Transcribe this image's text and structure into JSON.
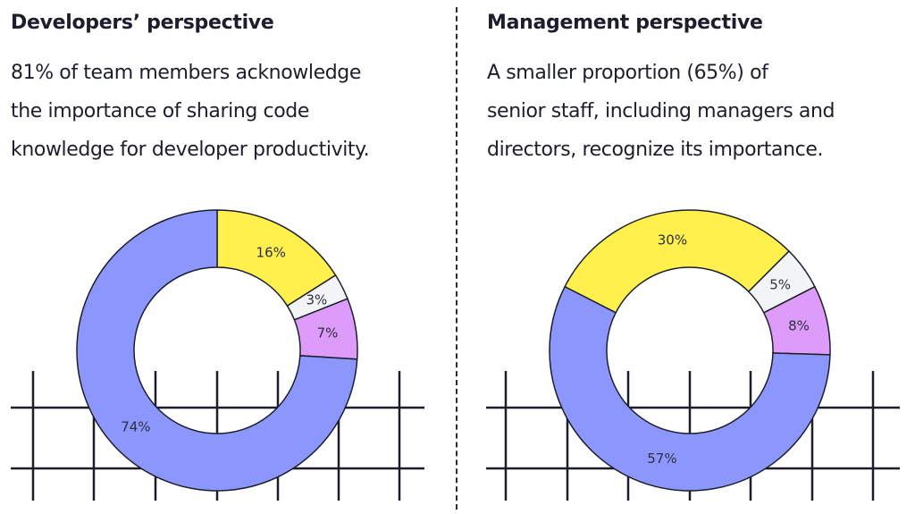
{
  "colors": {
    "blue": "#8C97FD",
    "yellow": "#FFF04E",
    "gray": "#F3F4F6",
    "pink": "#DE9CFA",
    "ink": "#1d1e2c"
  },
  "panels": [
    {
      "title": "Developers’ perspective",
      "lines": [
        "81% of team members acknowledge",
        "the importance of sharing code",
        "knowledge for developer productivity."
      ]
    },
    {
      "title": "Management perspective",
      "lines": [
        "A smaller proportion (65%) of",
        "senior staff, including managers and",
        "directors, recognize its importance."
      ]
    }
  ],
  "chart_data": [
    {
      "type": "pie",
      "donut": true,
      "slices": [
        {
          "label": "16%",
          "value": 16,
          "color": "#FFF04E"
        },
        {
          "label": "3%",
          "value": 3,
          "color": "#F3F4F6"
        },
        {
          "label": "7%",
          "value": 7,
          "color": "#DE9CFA"
        },
        {
          "label": "74%",
          "value": 74,
          "color": "#8C97FD"
        }
      ]
    },
    {
      "type": "pie",
      "donut": true,
      "slices": [
        {
          "label": "30%",
          "value": 30,
          "color": "#FFF04E"
        },
        {
          "label": "5%",
          "value": 5,
          "color": "#F3F4F6"
        },
        {
          "label": "8%",
          "value": 8,
          "color": "#DE9CFA"
        },
        {
          "label": "57%",
          "value": 57,
          "color": "#8C97FD"
        }
      ]
    }
  ]
}
